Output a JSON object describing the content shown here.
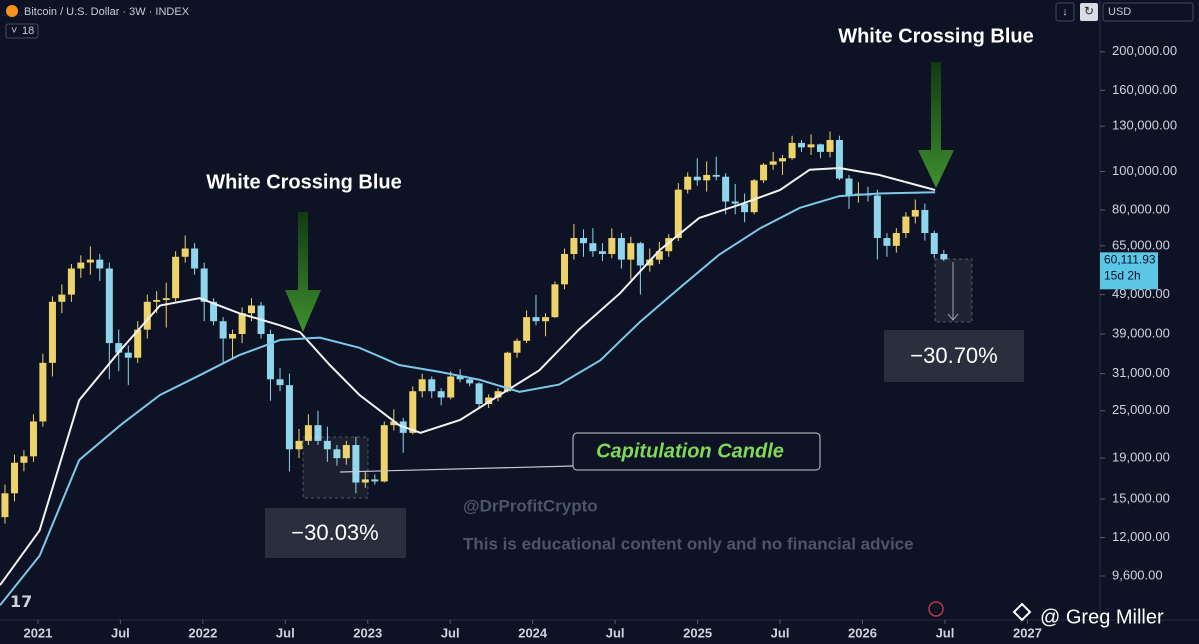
{
  "header": {
    "symbol": "Bitcoin / U.S. Dollar · 3W · INDEX",
    "badge": "18",
    "currency": "USD"
  },
  "credit": "@ Greg Miller",
  "chart_data": {
    "type": "candlestick",
    "log_scale": true,
    "grid": false,
    "up_color": "#eed36a",
    "down_color": "#8fd6ec",
    "xlim": [
      2020.77,
      2027.44
    ],
    "ylim": [
      7440,
      270000
    ],
    "xticks": [
      2021,
      {
        "value": 2021.5,
        "label": "Jul"
      },
      2022,
      {
        "value": 2022.5,
        "label": "Jul"
      },
      2023,
      {
        "value": 2023.5,
        "label": "Jul"
      },
      2024,
      {
        "value": 2024.5,
        "label": "Jul"
      },
      2025,
      {
        "value": 2025.5,
        "label": "Jul"
      },
      2026,
      {
        "value": 2026.5,
        "label": "Jul"
      },
      2027
    ],
    "yticks": [
      {
        "value": 9600,
        "label": "9,600.00"
      },
      {
        "value": 12000,
        "label": "12,000.00"
      },
      {
        "value": 15000,
        "label": "15,000.00"
      },
      {
        "value": 19000,
        "label": "19,000.00"
      },
      {
        "value": 25000,
        "label": "25,000.00"
      },
      {
        "value": 31000,
        "label": "31,000.00"
      },
      {
        "value": 39000,
        "label": "39,000.00"
      },
      {
        "value": 49000,
        "label": "49,000.00"
      },
      {
        "value": 65000,
        "label": "65,000.00"
      },
      {
        "value": 80000,
        "label": "80,000.00"
      },
      {
        "value": 100000,
        "label": "100,000.00"
      },
      {
        "value": 130000,
        "label": "130,000.00"
      },
      {
        "value": 160000,
        "label": "160,000.00"
      },
      {
        "value": 200000,
        "label": "200,000.00"
      }
    ],
    "x": [
      2020.8,
      2020.858,
      2020.915,
      2020.973,
      2021.03,
      2021.088,
      2021.145,
      2021.203,
      2021.26,
      2021.318,
      2021.375,
      2021.433,
      2021.49,
      2021.548,
      2021.605,
      2021.663,
      2021.72,
      2021.778,
      2021.835,
      2021.893,
      2021.95,
      2022.008,
      2022.065,
      2022.123,
      2022.18,
      2022.238,
      2022.295,
      2022.353,
      2022.41,
      2022.468,
      2022.525,
      2022.583,
      2022.64,
      2022.698,
      2022.755,
      2022.813,
      2022.87,
      2022.928,
      2022.985,
      2023.043,
      2023.1,
      2023.158,
      2023.215,
      2023.273,
      2023.33,
      2023.388,
      2023.445,
      2023.503,
      2023.56,
      2023.618,
      2023.675,
      2023.733,
      2023.79,
      2023.848,
      2023.905,
      2023.963,
      2024.02,
      2024.078,
      2024.135,
      2024.193,
      2024.25,
      2024.308,
      2024.365,
      2024.423,
      2024.48,
      2024.538,
      2024.595,
      2024.653,
      2024.71,
      2024.768,
      2024.825,
      2024.883,
      2024.94,
      2024.998,
      2025.055,
      2025.113,
      2025.17,
      2025.228,
      2025.285,
      2025.343,
      2025.4,
      2025.458,
      2025.515,
      2025.573,
      2025.63,
      2025.688,
      2025.745,
      2025.803,
      2025.86,
      2025.918,
      2025.975,
      2026.033,
      2026.09,
      2026.148,
      2026.205,
      2026.263,
      2026.32,
      2026.378,
      2026.435,
      2026.493
    ],
    "open": [
      13500,
      15500,
      18500,
      19200,
      23500,
      33000,
      47000,
      49000,
      57000,
      59000,
      60000,
      57000,
      37000,
      35000,
      34000,
      40000,
      47000,
      47500,
      48000,
      61000,
      64000,
      57000,
      47000,
      42000,
      38000,
      39000,
      44000,
      46000,
      39000,
      30000,
      29000,
      20000,
      21000,
      23000,
      21000,
      20000,
      19000,
      20500,
      16500,
      16800,
      16600,
      23000,
      23500,
      22000,
      28000,
      30000,
      28000,
      27000,
      30500,
      30000,
      29300,
      26000,
      27000,
      28000,
      35000,
      37500,
      43000,
      42000,
      43000,
      52000,
      62000,
      68000,
      66000,
      63000,
      62000,
      68000,
      60000,
      66000,
      58000,
      60000,
      63000,
      68000,
      90000,
      97000,
      95000,
      98000,
      97000,
      84000,
      83000,
      79000,
      95000,
      104000,
      106000,
      108000,
      118000,
      115000,
      117000,
      112000,
      120000,
      96000,
      87000,
      88000,
      87000,
      68000,
      65000,
      70000,
      77000,
      80000,
      70000,
      62000
    ],
    "high": [
      16300,
      19400,
      19900,
      24500,
      34800,
      48500,
      52000,
      58500,
      61500,
      64800,
      62000,
      59000,
      40000,
      36500,
      42000,
      49000,
      50000,
      52500,
      63000,
      69000,
      66000,
      59000,
      48000,
      43000,
      40000,
      45500,
      48000,
      47000,
      40000,
      32000,
      31000,
      22500,
      24500,
      25000,
      22800,
      20500,
      21000,
      21500,
      17600,
      17300,
      23500,
      25200,
      24000,
      28800,
      31000,
      30500,
      28500,
      31400,
      31800,
      30300,
      29500,
      27500,
      28500,
      35200,
      38000,
      44700,
      48900,
      44000,
      52900,
      64000,
      73800,
      71500,
      72000,
      66000,
      71900,
      70000,
      68500,
      66500,
      64000,
      66500,
      69500,
      93500,
      99500,
      108000,
      106000,
      109000,
      99000,
      93000,
      88000,
      95700,
      105000,
      112000,
      110000,
      123000,
      120000,
      124000,
      117500,
      126000,
      123000,
      98000,
      94000,
      91500,
      90000,
      70000,
      72000,
      79000,
      85000,
      83000,
      71000,
      63500
    ],
    "low": [
      13000,
      14800,
      17600,
      18600,
      22800,
      30500,
      44000,
      47000,
      54000,
      55000,
      53000,
      30000,
      31500,
      29000,
      33000,
      38000,
      44000,
      40500,
      47000,
      59000,
      55000,
      42000,
      41000,
      33000,
      34000,
      37000,
      42000,
      38000,
      26500,
      28000,
      17600,
      19000,
      20500,
      20500,
      18600,
      18200,
      18300,
      15500,
      16000,
      16300,
      16500,
      22300,
      19600,
      21800,
      27000,
      26900,
      25800,
      26700,
      29500,
      28800,
      25300,
      25400,
      26400,
      27800,
      34000,
      37000,
      41000,
      38500,
      42800,
      50500,
      60000,
      61000,
      61000,
      59500,
      60500,
      57000,
      53500,
      49000,
      56000,
      58500,
      61000,
      66800,
      88000,
      92000,
      89000,
      95000,
      78000,
      78000,
      74500,
      78000,
      93500,
      101000,
      98000,
      107000,
      112000,
      110000,
      108000,
      108500,
      95000,
      80500,
      83500,
      84000,
      60000,
      61000,
      62500,
      68000,
      74000,
      67000,
      60500,
      59500
    ],
    "close": [
      15500,
      18500,
      19200,
      23500,
      33000,
      47000,
      49000,
      57000,
      59000,
      60000,
      57000,
      37000,
      35000,
      34000,
      40000,
      47000,
      47500,
      48000,
      61000,
      64000,
      57000,
      47000,
      42000,
      38000,
      39000,
      44000,
      46000,
      39000,
      30000,
      29000,
      20000,
      21000,
      23000,
      21000,
      20000,
      19000,
      20500,
      16500,
      16800,
      16600,
      23000,
      23500,
      22000,
      28000,
      30000,
      28000,
      27000,
      30500,
      30000,
      29300,
      26000,
      27000,
      28000,
      35000,
      37500,
      43000,
      42000,
      43000,
      52000,
      62000,
      68000,
      66000,
      63000,
      62000,
      68000,
      60000,
      66000,
      58000,
      60000,
      63000,
      68000,
      90000,
      97000,
      95000,
      98000,
      97000,
      84000,
      83000,
      79000,
      95000,
      104000,
      106000,
      108000,
      118000,
      115000,
      117000,
      112000,
      120000,
      96000,
      87000,
      88000,
      87000,
      68000,
      65000,
      70000,
      77000,
      80000,
      70000,
      62000,
      60111.93
    ],
    "lines": [
      {
        "color": "#f2f2f2",
        "x": [
          2020.77,
          2021.01,
          2021.25,
          2021.5,
          2021.74,
          2021.98,
          2022.22,
          2022.47,
          2022.59,
          2022.77,
          2022.95,
          2023.19,
          2023.32,
          2023.56,
          2023.8,
          2024.04,
          2024.28,
          2024.53,
          2024.77,
          2025.01,
          2025.25,
          2025.5,
          2025.68,
          2025.86,
          2026.1,
          2026.44
        ],
        "values": [
          9100,
          12500,
          26600,
          35500,
          46000,
          48000,
          44000,
          41000,
          39400,
          32600,
          27400,
          23000,
          22000,
          23700,
          27400,
          31600,
          40000,
          49400,
          63400,
          76400,
          82400,
          89800,
          101000,
          102000,
          98000,
          89800
        ]
      },
      {
        "color": "#7cc9ea",
        "x": [
          2020.77,
          2021.01,
          2021.25,
          2021.5,
          2021.74,
          2021.98,
          2022.22,
          2022.47,
          2022.71,
          2022.95,
          2023.19,
          2023.44,
          2023.68,
          2023.92,
          2024.16,
          2024.41,
          2024.65,
          2024.89,
          2025.13,
          2025.38,
          2025.62,
          2025.86,
          2026.1,
          2026.44
        ],
        "values": [
          8100,
          10800,
          18800,
          23000,
          27400,
          30700,
          34500,
          37700,
          38200,
          36000,
          32600,
          31300,
          29900,
          27900,
          29100,
          33500,
          41800,
          50900,
          61700,
          72000,
          81000,
          86700,
          88000,
          88700
        ]
      }
    ],
    "last_price": {
      "value": 60111.93,
      "label": "60,111.93",
      "countdown": "15d 2h"
    },
    "annotations": [
      "White Crossing Blue",
      "White Crossing Blue",
      "Capitulation Candle",
      "−30.03%",
      "−30.70%",
      "@DrProfitCrypto",
      "This is educational content only and no financial advice"
    ]
  }
}
